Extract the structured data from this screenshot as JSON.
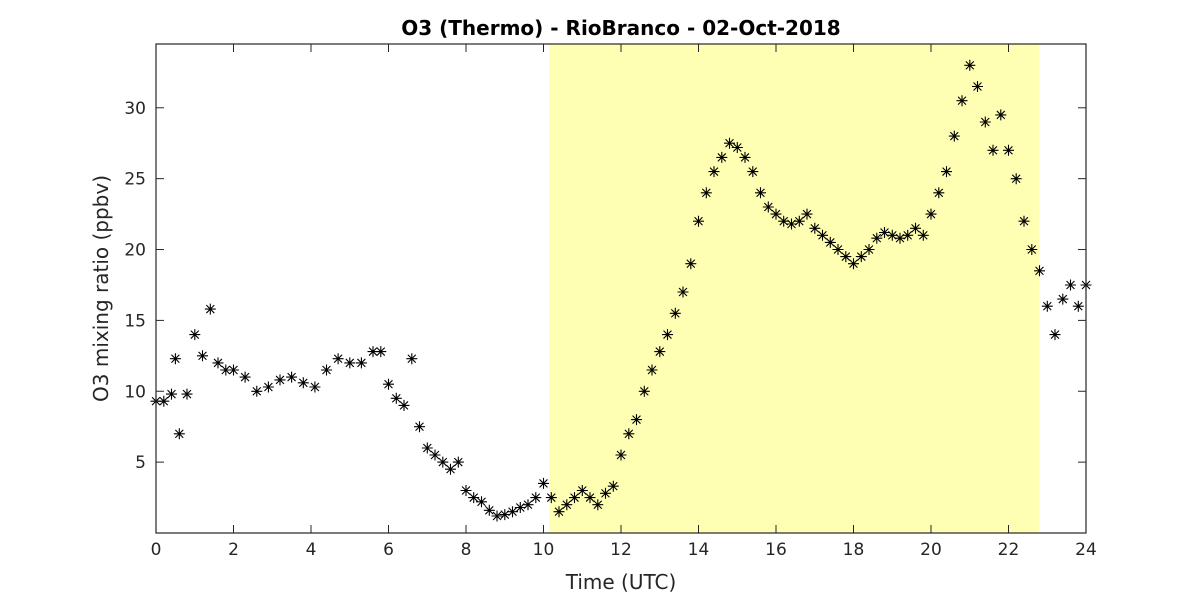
{
  "chart_data": {
    "type": "scatter",
    "title": "O3 (Thermo) - RioBranco - 02-Oct-2018",
    "xlabel": "Time (UTC)",
    "ylabel": "O3 mixing ratio (ppbv)",
    "xlim": [
      0,
      24
    ],
    "ylim": [
      0,
      34.5
    ],
    "xticks": [
      0,
      2,
      4,
      6,
      8,
      10,
      12,
      14,
      16,
      18,
      20,
      22,
      24
    ],
    "yticks": [
      5,
      10,
      15,
      20,
      25,
      30
    ],
    "grid": false,
    "marker": "asterisk",
    "colors": {
      "marker": "#000000",
      "daytime_shading": "#ffffb3",
      "axes": "#262626"
    },
    "shaded_region": {
      "x_start": 10.15,
      "x_end": 22.8
    },
    "series": [
      {
        "x": [
          0.0,
          0.2,
          0.4,
          0.5,
          0.6,
          0.8,
          1.0,
          1.2,
          1.4,
          1.6,
          1.8,
          2.0,
          2.3,
          2.6,
          2.9,
          3.2,
          3.5,
          3.8,
          4.1,
          4.4,
          4.7,
          5.0,
          5.3,
          5.6,
          5.8,
          6.0,
          6.2,
          6.4,
          6.6,
          6.8,
          7.0,
          7.2,
          7.4,
          7.6,
          7.8,
          8.0,
          8.2,
          8.4,
          8.6,
          8.8,
          9.0,
          9.2,
          9.4,
          9.6,
          9.8,
          10.0,
          10.2,
          10.4,
          10.6,
          10.8,
          11.0,
          11.2,
          11.4,
          11.6,
          11.8,
          12.0,
          12.2,
          12.4,
          12.6,
          12.8,
          13.0,
          13.2,
          13.4,
          13.6,
          13.8,
          14.0,
          14.2,
          14.4,
          14.6,
          14.8,
          15.0,
          15.2,
          15.4,
          15.6,
          15.8,
          16.0,
          16.2,
          16.4,
          16.6,
          16.8,
          17.0,
          17.2,
          17.4,
          17.6,
          17.8,
          18.0,
          18.2,
          18.4,
          18.6,
          18.8,
          19.0,
          19.2,
          19.4,
          19.6,
          19.8,
          20.0,
          20.2,
          20.4,
          20.6,
          20.8,
          21.0,
          21.2,
          21.4,
          21.6,
          21.8,
          22.0,
          22.2,
          22.4,
          22.6,
          22.8,
          23.0,
          23.2,
          23.4,
          23.6,
          23.8,
          24.0
        ],
        "y": [
          9.3,
          9.3,
          9.8,
          12.3,
          7.0,
          9.8,
          14.0,
          12.5,
          15.8,
          12.0,
          11.5,
          11.5,
          11.0,
          10.0,
          10.3,
          10.8,
          11.0,
          10.6,
          10.3,
          11.5,
          12.3,
          12.0,
          12.0,
          12.8,
          12.8,
          10.5,
          9.5,
          9.0,
          12.3,
          7.5,
          6.0,
          5.5,
          5.0,
          4.5,
          5.0,
          3.0,
          2.5,
          2.2,
          1.6,
          1.2,
          1.3,
          1.5,
          1.8,
          2.0,
          2.5,
          3.5,
          2.5,
          1.5,
          2.0,
          2.5,
          3.0,
          2.5,
          2.0,
          2.8,
          3.3,
          5.5,
          7.0,
          8.0,
          10.0,
          11.5,
          12.8,
          14.0,
          15.5,
          17.0,
          19.0,
          22.0,
          24.0,
          25.5,
          26.5,
          27.5,
          27.2,
          26.5,
          25.5,
          24.0,
          23.0,
          22.5,
          22.0,
          21.8,
          22.0,
          22.5,
          21.5,
          21.0,
          20.5,
          20.0,
          19.5,
          19.0,
          19.5,
          20.0,
          20.8,
          21.2,
          21.0,
          20.8,
          21.0,
          21.5,
          21.0,
          22.5,
          24.0,
          25.5,
          28.0,
          30.5,
          33.0,
          31.5,
          29.0,
          27.0,
          29.5,
          27.0,
          25.0,
          22.0,
          20.0,
          18.5,
          16.0,
          14.0,
          16.5,
          17.5,
          16.0,
          17.5
        ]
      }
    ]
  }
}
